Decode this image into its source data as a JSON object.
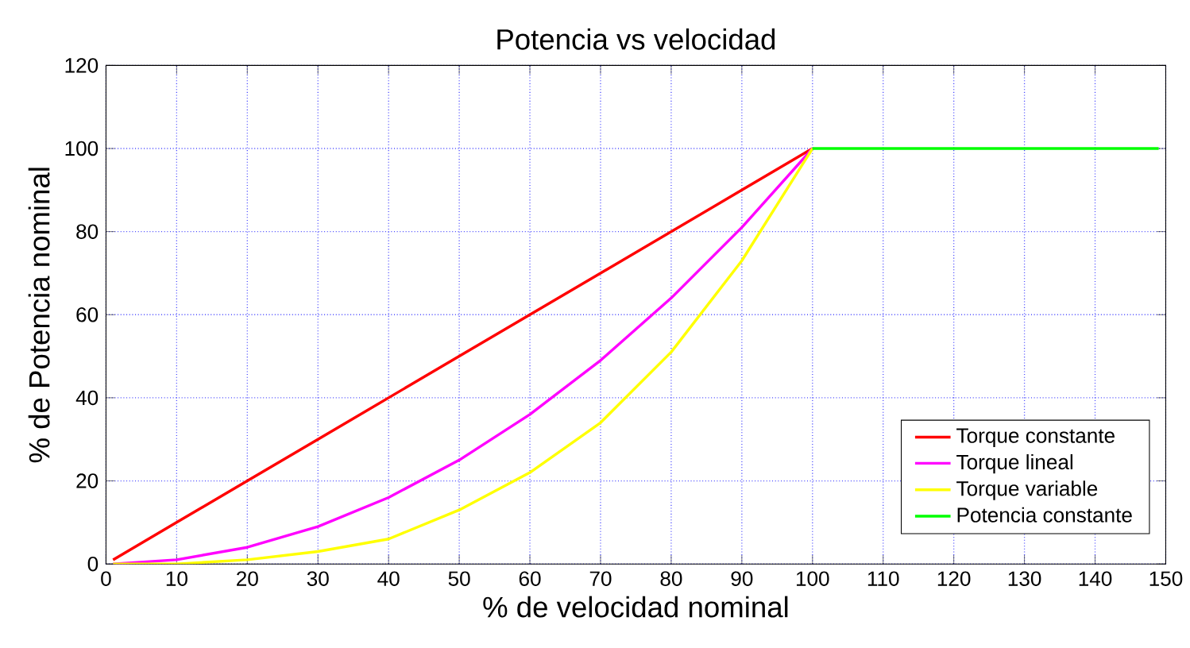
{
  "chart_data": {
    "type": "line",
    "title": "Potencia vs velocidad",
    "xlabel": "% de velocidad nominal",
    "ylabel": "% de Potencia nominal",
    "xlim": [
      0,
      150
    ],
    "xticks": [
      0,
      10,
      20,
      30,
      40,
      50,
      60,
      70,
      80,
      90,
      100,
      110,
      120,
      130,
      140,
      150
    ],
    "ylim": [
      0,
      120
    ],
    "yticks": [
      0,
      20,
      40,
      60,
      80,
      100,
      120
    ],
    "grid": true,
    "legend": "bottom right",
    "marker": "none",
    "line_style": "solid",
    "series": [
      {
        "name": "Torque constante",
        "color": "#ff0000",
        "x": [
          1,
          10,
          20,
          30,
          40,
          50,
          60,
          70,
          80,
          90,
          100
        ],
        "values": [
          1,
          10,
          20,
          30,
          40,
          50,
          60,
          70,
          80,
          90,
          100
        ]
      },
      {
        "name": "Torque lineal",
        "color": "#ff00ff",
        "x": [
          1,
          10,
          20,
          30,
          40,
          50,
          60,
          70,
          80,
          90,
          100
        ],
        "values": [
          0,
          1,
          4,
          9,
          16,
          25,
          36,
          49,
          64,
          81,
          100
        ]
      },
      {
        "name": "Torque variable",
        "color": "#ffff00",
        "x": [
          1,
          10,
          20,
          30,
          40,
          50,
          60,
          70,
          80,
          90,
          100
        ],
        "values": [
          0,
          0,
          1,
          3,
          6,
          13,
          22,
          34,
          51,
          73,
          100
        ]
      },
      {
        "name": "Potencia constante",
        "color": "#00ff00",
        "x": [
          100,
          149
        ],
        "values": [
          100,
          100
        ]
      }
    ]
  }
}
